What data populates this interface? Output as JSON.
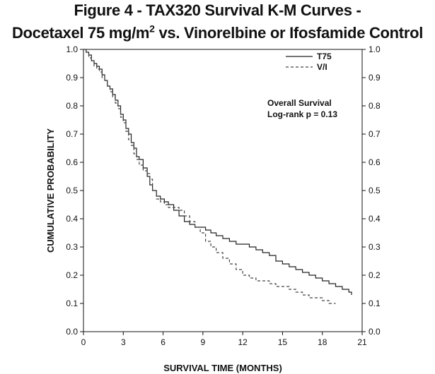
{
  "title_line1": "Figure 4 - TAX320 Survival K-M Curves -",
  "title_line2_pre": "Docetaxel 75 mg/m",
  "title_line2_sup": "2",
  "title_line2_post": " vs. Vinorelbine or Ifosfamide Control",
  "chart_data": {
    "type": "line",
    "xlabel": "SURVIVAL TIME (MONTHS)",
    "ylabel": "CUMULATIVE PROBABILITY",
    "xlim": [
      0,
      21
    ],
    "ylim": [
      0,
      1
    ],
    "x_ticks": [
      "0",
      "3",
      "6",
      "9",
      "12",
      "15",
      "18",
      "21"
    ],
    "y_ticks": [
      "0.0",
      "0.1",
      "0.2",
      "0.3",
      "0.4",
      "0.5",
      "0.6",
      "0.7",
      "0.8",
      "0.9",
      "1.0"
    ],
    "grid": false,
    "legend_position": "top-right",
    "annotations": [
      "Overall Survival",
      "Log-rank p = 0.13"
    ],
    "series": [
      {
        "name": "T75",
        "style": "solid",
        "color": "#222222",
        "x": [
          0,
          0.2,
          0.4,
          0.6,
          0.8,
          1.0,
          1.2,
          1.4,
          1.6,
          1.8,
          2.0,
          2.2,
          2.4,
          2.6,
          2.8,
          3.0,
          3.2,
          3.4,
          3.6,
          3.8,
          4.0,
          4.2,
          4.5,
          4.8,
          5.0,
          5.2,
          5.5,
          5.8,
          6.1,
          6.4,
          6.8,
          7.2,
          7.6,
          8.0,
          8.4,
          8.8,
          9.2,
          9.6,
          10.0,
          10.5,
          11.0,
          11.5,
          12.0,
          12.5,
          13.0,
          13.5,
          14.0,
          14.5,
          15.0,
          15.5,
          16.0,
          16.5,
          17.0,
          17.5,
          18.0,
          18.5,
          19.0,
          19.5,
          20.0,
          20.2
        ],
        "y": [
          1.0,
          0.99,
          0.98,
          0.96,
          0.95,
          0.94,
          0.93,
          0.91,
          0.89,
          0.87,
          0.86,
          0.84,
          0.82,
          0.8,
          0.77,
          0.75,
          0.72,
          0.7,
          0.67,
          0.65,
          0.62,
          0.61,
          0.58,
          0.55,
          0.52,
          0.5,
          0.48,
          0.47,
          0.46,
          0.45,
          0.43,
          0.41,
          0.39,
          0.38,
          0.37,
          0.37,
          0.36,
          0.35,
          0.34,
          0.33,
          0.32,
          0.31,
          0.31,
          0.3,
          0.29,
          0.28,
          0.27,
          0.25,
          0.24,
          0.23,
          0.22,
          0.21,
          0.2,
          0.19,
          0.18,
          0.17,
          0.16,
          0.15,
          0.14,
          0.13
        ]
      },
      {
        "name": "V/I",
        "style": "dashed",
        "color": "#444444",
        "x": [
          0,
          0.2,
          0.4,
          0.6,
          0.8,
          1.0,
          1.2,
          1.4,
          1.6,
          1.8,
          2.0,
          2.2,
          2.4,
          2.6,
          2.8,
          3.0,
          3.2,
          3.4,
          3.6,
          3.8,
          4.0,
          4.2,
          4.5,
          4.8,
          5.0,
          5.2,
          5.5,
          5.8,
          6.1,
          6.4,
          6.8,
          7.2,
          7.6,
          8.0,
          8.4,
          8.8,
          9.2,
          9.6,
          10.0,
          10.5,
          11.0,
          11.5,
          12.0,
          12.5,
          13.0,
          13.5,
          14.0,
          14.5,
          15.0,
          15.5,
          16.0,
          16.5,
          17.0,
          17.5,
          18.0,
          18.5,
          19.0
        ],
        "y": [
          1.0,
          0.99,
          0.97,
          0.96,
          0.94,
          0.93,
          0.92,
          0.9,
          0.89,
          0.87,
          0.85,
          0.83,
          0.81,
          0.79,
          0.76,
          0.74,
          0.71,
          0.68,
          0.66,
          0.63,
          0.61,
          0.59,
          0.57,
          0.56,
          0.54,
          0.5,
          0.47,
          0.46,
          0.45,
          0.44,
          0.44,
          0.43,
          0.41,
          0.39,
          0.37,
          0.35,
          0.32,
          0.3,
          0.28,
          0.26,
          0.24,
          0.22,
          0.2,
          0.19,
          0.18,
          0.18,
          0.17,
          0.16,
          0.16,
          0.15,
          0.14,
          0.13,
          0.12,
          0.12,
          0.11,
          0.1,
          0.1
        ]
      }
    ]
  }
}
